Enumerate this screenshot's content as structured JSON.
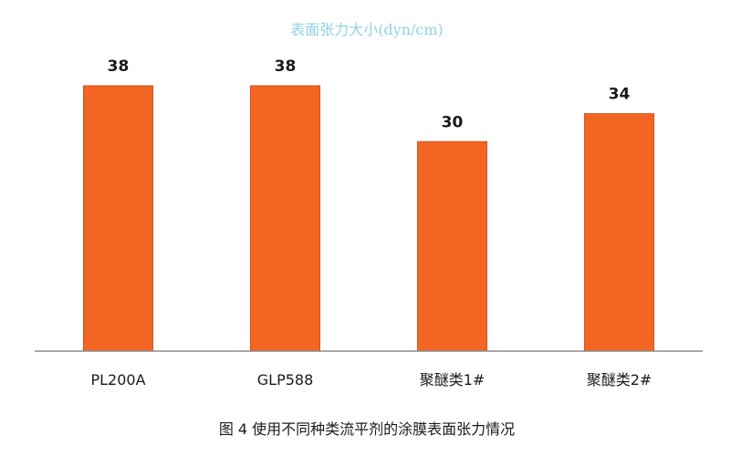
{
  "chart_data": {
    "type": "bar",
    "title": "表面张力大小(dyn/cm)",
    "categories": [
      "PL200A",
      "GLP588",
      "聚醚类1#",
      "聚醚类2#"
    ],
    "values": [
      38,
      38,
      30,
      34
    ],
    "xlabel": "",
    "ylabel": "",
    "ylim": [
      0,
      40
    ],
    "grid": false,
    "legend": "none",
    "bar_color": "#f26522",
    "bar_edge_color": "#d9531a",
    "axis_color": "#8c8c8c"
  },
  "caption": "图 4 使用不同种类流平剂的涂膜表面张力情况"
}
